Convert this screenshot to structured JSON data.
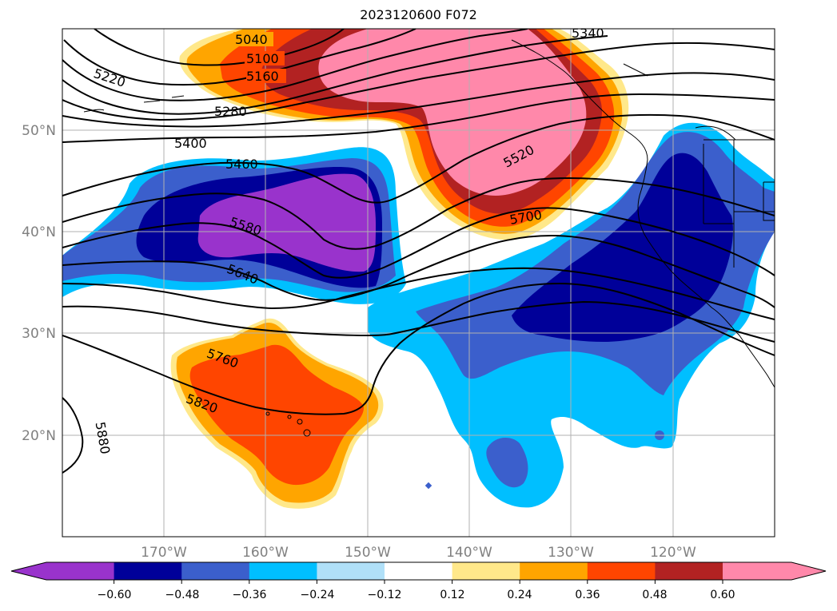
{
  "title": "2023120600 F072",
  "latitude_labels": [
    "50°N",
    "40°N",
    "30°N",
    "20°N"
  ],
  "longitude_labels": [
    "170°W",
    "160°W",
    "150°W",
    "140°W",
    "130°W",
    "120°W"
  ],
  "contour_labels": {
    "c5040": "5040",
    "c5100": "5100",
    "c5160": "5160",
    "c5220": "5220",
    "c5280": "5280",
    "c5340": "5340",
    "c5400": "5400",
    "c5460": "5460",
    "c5520": "5520",
    "c5580": "5580",
    "c5640": "5640",
    "c5700": "5700",
    "c5760": "5760",
    "c5820": "5820",
    "c5880": "5880"
  },
  "colorbar": {
    "tick_labels": [
      "−0.60",
      "−0.48",
      "−0.36",
      "−0.24",
      "−0.12",
      "0.12",
      "0.24",
      "0.36",
      "0.48",
      "0.60"
    ],
    "colors": [
      "#9933cc",
      "#000099",
      "#3b5fcc",
      "#00bfff",
      "#b0e0f8",
      "#ffffff",
      "#ffe88a",
      "#ffa500",
      "#ff4500",
      "#b22222",
      "#ff88aa"
    ]
  }
}
